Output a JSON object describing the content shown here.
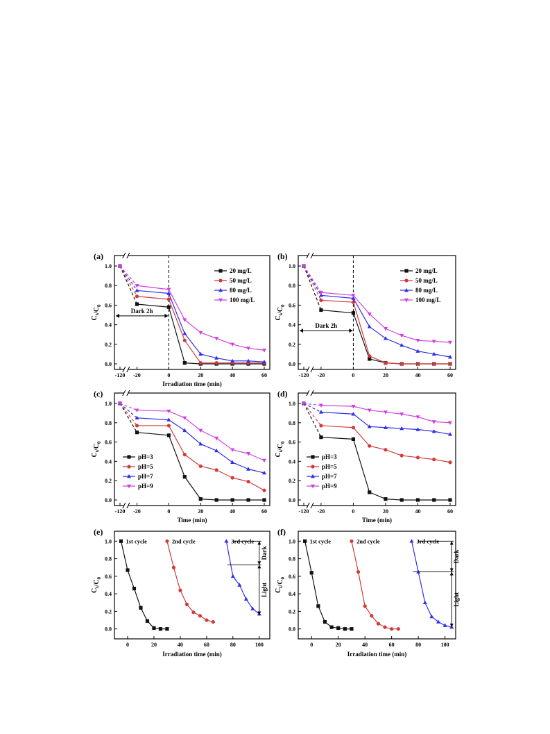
{
  "figure": {
    "colors": {
      "black": "#111111",
      "red": "#d03a3a",
      "blue": "#2f2fe8",
      "magenta": "#d040e0",
      "axis": "#000000"
    }
  },
  "chart_data": [
    {
      "panel_label": "(a)",
      "type": "line",
      "xlabel": "Irradiation time (min)",
      "ylabel": "Ct/C0",
      "xticks": [
        "-120",
        "-20",
        "0",
        "20",
        "40",
        "60"
      ],
      "xlim": [
        -30,
        60
      ],
      "ylim": [
        0,
        1.05
      ],
      "yticks": [
        "0.0",
        "0.2",
        "0.4",
        "0.6",
        "0.8",
        "1.0"
      ],
      "x": [
        -120,
        -20,
        0,
        10,
        20,
        30,
        40,
        50,
        60
      ],
      "dark_period": {
        "label": "Dark 2h",
        "arrow_y": 0.49
      },
      "legend_position": "top-right",
      "series": [
        {
          "name": "20 mg/L",
          "color": "#111111",
          "marker": "square",
          "values": [
            1.0,
            0.61,
            0.58,
            0.01,
            0.0,
            0.0,
            0.0,
            0.0,
            0.0
          ]
        },
        {
          "name": "50 mg/L",
          "color": "#d03a3a",
          "marker": "circle",
          "values": [
            1.0,
            0.69,
            0.66,
            0.24,
            0.01,
            0.01,
            0.01,
            0.01,
            0.01
          ]
        },
        {
          "name": "80 mg/L",
          "color": "#2f2fe8",
          "marker": "triangle-up",
          "values": [
            1.0,
            0.75,
            0.72,
            0.31,
            0.1,
            0.06,
            0.03,
            0.03,
            0.02
          ]
        },
        {
          "name": "100 mg/L",
          "color": "#d040e0",
          "marker": "triangle-down",
          "values": [
            1.0,
            0.8,
            0.76,
            0.45,
            0.32,
            0.26,
            0.2,
            0.16,
            0.14
          ]
        }
      ]
    },
    {
      "panel_label": "(b)",
      "type": "line",
      "xlabel": "",
      "ylabel": "Ct/C0",
      "xticks": [
        "-120",
        "-20",
        "0",
        "20",
        "40",
        "60"
      ],
      "xlim": [
        -30,
        60
      ],
      "ylim": [
        0,
        1.05
      ],
      "yticks": [
        "0.0",
        "0.2",
        "0.4",
        "0.6",
        "0.8",
        "1.0"
      ],
      "x": [
        -120,
        -20,
        0,
        10,
        20,
        30,
        40,
        50,
        60
      ],
      "dark_period": {
        "label": "Dark 2h",
        "arrow_y": 0.34
      },
      "legend_position": "top-right",
      "series": [
        {
          "name": "20 mg/L",
          "color": "#111111",
          "marker": "square",
          "values": [
            1.0,
            0.55,
            0.52,
            0.05,
            0.01,
            0.0,
            0.0,
            0.0,
            0.0
          ]
        },
        {
          "name": "50 mg/L",
          "color": "#d03a3a",
          "marker": "circle",
          "values": [
            1.0,
            0.65,
            0.63,
            0.08,
            0.01,
            0.0,
            0.0,
            0.0,
            0.0
          ]
        },
        {
          "name": "80 mg/L",
          "color": "#2f2fe8",
          "marker": "triangle-up",
          "values": [
            1.0,
            0.7,
            0.67,
            0.38,
            0.26,
            0.19,
            0.13,
            0.1,
            0.07
          ]
        },
        {
          "name": "100 mg/L",
          "color": "#d040e0",
          "marker": "triangle-down",
          "values": [
            1.0,
            0.73,
            0.7,
            0.51,
            0.36,
            0.29,
            0.24,
            0.23,
            0.22
          ]
        }
      ]
    },
    {
      "panel_label": "(c)",
      "type": "line",
      "xlabel": "Time (min)",
      "ylabel": "Ct/C0",
      "xticks": [
        "-120",
        "-20",
        "0",
        "20",
        "40",
        "60"
      ],
      "xlim": [
        -30,
        60
      ],
      "ylim": [
        0,
        1.05
      ],
      "yticks": [
        "0.0",
        "0.2",
        "0.4",
        "0.6",
        "0.8",
        "1.0"
      ],
      "x": [
        -120,
        -20,
        0,
        10,
        20,
        30,
        40,
        50,
        60
      ],
      "legend_position": "bottom-left",
      "series": [
        {
          "name": "pH=3",
          "color": "#111111",
          "marker": "square",
          "values": [
            1.0,
            0.7,
            0.67,
            0.24,
            0.01,
            0.0,
            0.0,
            0.0,
            0.0
          ]
        },
        {
          "name": "pH=5",
          "color": "#d03a3a",
          "marker": "circle",
          "values": [
            1.0,
            0.77,
            0.77,
            0.47,
            0.35,
            0.31,
            0.23,
            0.19,
            0.1
          ]
        },
        {
          "name": "pH=7",
          "color": "#2f2fe8",
          "marker": "triangle-up",
          "values": [
            1.0,
            0.85,
            0.83,
            0.72,
            0.58,
            0.51,
            0.39,
            0.32,
            0.28
          ]
        },
        {
          "name": "pH=9",
          "color": "#d040e0",
          "marker": "triangle-down",
          "values": [
            1.0,
            0.93,
            0.92,
            0.85,
            0.72,
            0.64,
            0.52,
            0.48,
            0.41
          ]
        }
      ]
    },
    {
      "panel_label": "(d)",
      "type": "line",
      "xlabel": "Time (min)",
      "ylabel": "Ct/C0",
      "xticks": [
        "-120",
        "-20",
        "0",
        "20",
        "40",
        "60"
      ],
      "xlim": [
        -30,
        60
      ],
      "ylim": [
        0,
        1.05
      ],
      "yticks": [
        "0.0",
        "0.2",
        "0.4",
        "0.6",
        "0.8",
        "1.0"
      ],
      "x": [
        -120,
        -20,
        0,
        10,
        20,
        30,
        40,
        50,
        60
      ],
      "legend_position": "bottom-left",
      "series": [
        {
          "name": "pH=3",
          "color": "#111111",
          "marker": "square",
          "values": [
            1.0,
            0.65,
            0.63,
            0.08,
            0.01,
            0.0,
            0.0,
            0.0,
            0.0
          ]
        },
        {
          "name": "pH=5",
          "color": "#d03a3a",
          "marker": "circle",
          "values": [
            1.0,
            0.77,
            0.75,
            0.56,
            0.52,
            0.46,
            0.44,
            0.42,
            0.39
          ]
        },
        {
          "name": "pH=7",
          "color": "#2f2fe8",
          "marker": "triangle-up",
          "values": [
            1.0,
            0.91,
            0.89,
            0.76,
            0.75,
            0.74,
            0.73,
            0.71,
            0.68
          ]
        },
        {
          "name": "pH=9",
          "color": "#d040e0",
          "marker": "triangle-down",
          "values": [
            1.0,
            0.98,
            0.97,
            0.93,
            0.91,
            0.89,
            0.86,
            0.81,
            0.8
          ]
        }
      ]
    },
    {
      "panel_label": "(e)",
      "type": "line",
      "xlabel": "Irradiation time (min)",
      "ylabel": "Ct/C0",
      "xticks": [
        "0",
        "20",
        "40",
        "60",
        "80",
        "100"
      ],
      "xlim": [
        -10,
        108
      ],
      "ylim": [
        -0.05,
        1.05
      ],
      "yticks": [
        "0.0",
        "0.2",
        "0.4",
        "0.6",
        "0.8",
        "1.0"
      ],
      "series": [
        {
          "name": "1st cycle",
          "color": "#111111",
          "marker": "square",
          "x": [
            -5,
            0,
            5,
            10,
            15,
            20,
            25,
            30
          ],
          "values": [
            1.0,
            0.67,
            0.46,
            0.24,
            0.09,
            0.01,
            0.0,
            0.0
          ]
        },
        {
          "name": "2nd cycle",
          "color": "#d03a3a",
          "marker": "circle",
          "x": [
            30,
            35,
            40,
            45,
            50,
            55,
            60,
            65
          ],
          "values": [
            1.0,
            0.7,
            0.44,
            0.28,
            0.19,
            0.15,
            0.1,
            0.08
          ]
        },
        {
          "name": "3rd cycle",
          "color": "#2f2fe8",
          "marker": "triangle-up",
          "x": [
            75,
            80,
            85,
            90,
            95,
            100
          ],
          "values": [
            1.0,
            0.6,
            0.5,
            0.34,
            0.23,
            0.17
          ]
        }
      ],
      "bracket": {
        "top": 1.0,
        "mid": 0.73,
        "bottom": 0.16,
        "dark_label": "Dark",
        "light_label": "Light",
        "x": 100,
        "line_start_x": 80
      }
    },
    {
      "panel_label": "(f)",
      "type": "line",
      "xlabel": "Irradiation time (min)",
      "ylabel": "Ct/C0",
      "xticks": [
        "0",
        "20",
        "40",
        "60",
        "80",
        "100"
      ],
      "xlim": [
        -10,
        108
      ],
      "ylim": [
        -0.05,
        1.05
      ],
      "yticks": [
        "0.0",
        "0.2",
        "0.4",
        "0.6",
        "0.8",
        "1.0"
      ],
      "series": [
        {
          "name": "1st cycle",
          "color": "#111111",
          "marker": "square",
          "x": [
            -5,
            0,
            5,
            10,
            15,
            20,
            25,
            30
          ],
          "values": [
            1.0,
            0.64,
            0.26,
            0.08,
            0.02,
            0.01,
            0.0,
            0.0
          ]
        },
        {
          "name": "2nd cycle",
          "color": "#d03a3a",
          "marker": "circle",
          "x": [
            30,
            35,
            40,
            45,
            50,
            55,
            60,
            65
          ],
          "values": [
            1.0,
            0.65,
            0.26,
            0.15,
            0.06,
            0.02,
            0.0,
            0.0
          ]
        },
        {
          "name": "3rd cycle",
          "color": "#2f2fe8",
          "marker": "triangle-up",
          "x": [
            75,
            80,
            85,
            90,
            95,
            100,
            105
          ],
          "values": [
            1.0,
            0.65,
            0.3,
            0.14,
            0.08,
            0.04,
            0.02
          ]
        }
      ],
      "bracket": {
        "top": 1.0,
        "mid": 0.65,
        "bottom": 0.02,
        "dark_label": "Dark",
        "light_label": "Light",
        "x": 105,
        "line_start_x": 80
      }
    }
  ]
}
